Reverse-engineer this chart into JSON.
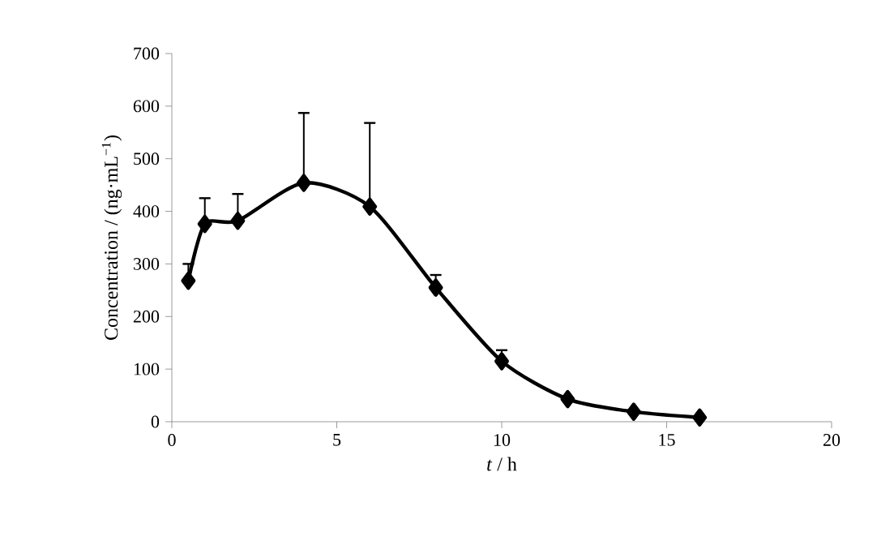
{
  "chart_data": {
    "type": "line",
    "xlabel": "*t* / h",
    "ylabel": "Concentration / (ng·mL$^{−1}$)",
    "x": [
      0.5,
      1,
      2,
      4,
      6,
      8,
      10,
      12,
      14,
      16
    ],
    "series": [
      {
        "color": "#000000",
        "values": [
          268,
          376,
          382,
          454,
          409,
          255,
          115,
          43,
          19,
          8
        ],
        "errors": [
          [
            268,
            300
          ],
          [
            376,
            425
          ],
          [
            382,
            433
          ],
          [
            454,
            587
          ],
          [
            409,
            568
          ],
          [
            255,
            279
          ],
          [
            115,
            136
          ],
          null,
          null,
          null
        ]
      }
    ],
    "xlim": [
      0,
      20
    ],
    "xticks": [
      0,
      5,
      10,
      15,
      20
    ],
    "ylim": [
      0,
      700
    ],
    "yticks": [
      0,
      100,
      200,
      300,
      400,
      500,
      600,
      700
    ],
    "marker": "diamond",
    "line_style": "solid",
    "grid": false
  }
}
